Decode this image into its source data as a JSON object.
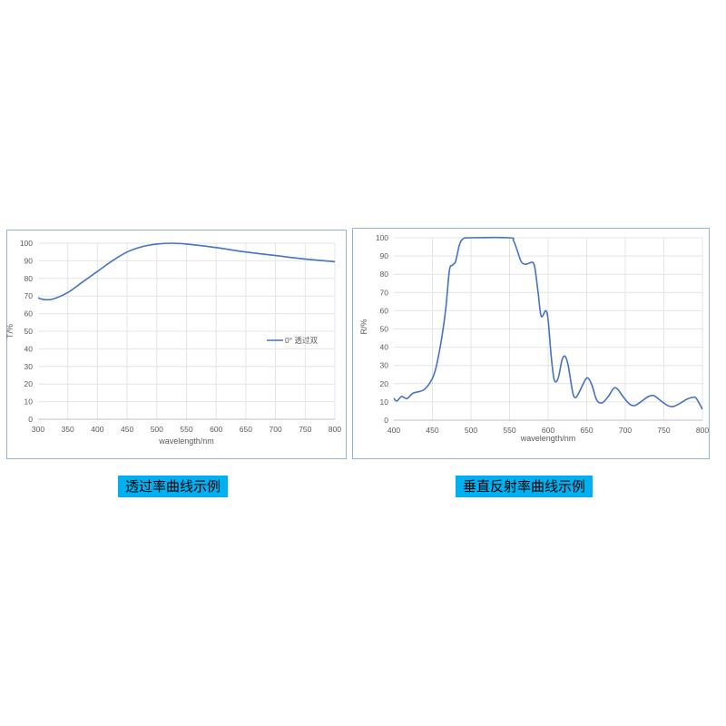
{
  "chart_data": [
    {
      "type": "line",
      "xlabel": "wavelength/nm",
      "ylabel": "T/%",
      "xlim": [
        300,
        800
      ],
      "ylim": [
        0,
        100
      ],
      "xticks": [
        300,
        350,
        400,
        450,
        500,
        550,
        600,
        650,
        700,
        750,
        800
      ],
      "yticks": [
        0,
        10,
        20,
        30,
        40,
        50,
        60,
        70,
        80,
        90,
        100
      ],
      "grid": true,
      "legend_position": "right",
      "series": [
        {
          "name": "0° 透过双",
          "color": "#4472c4",
          "x": [
            300,
            310,
            325,
            350,
            375,
            400,
            425,
            450,
            475,
            500,
            525,
            550,
            600,
            650,
            700,
            750,
            800
          ],
          "y": [
            69,
            68,
            68.3,
            72,
            78,
            84,
            90,
            95,
            98,
            99.5,
            100,
            99.5,
            97.5,
            95,
            93,
            91,
            89.5
          ]
        }
      ]
    },
    {
      "type": "line",
      "xlabel": "wavelength/nm",
      "ylabel": "R/%",
      "xlim": [
        400,
        800
      ],
      "ylim": [
        0,
        100
      ],
      "xticks": [
        400,
        450,
        500,
        550,
        600,
        650,
        700,
        750,
        800
      ],
      "yticks": [
        0,
        10,
        20,
        30,
        40,
        50,
        60,
        70,
        80,
        90,
        100
      ],
      "grid": true,
      "series": [
        {
          "color": "#4472c4",
          "x": [
            400,
            404,
            410,
            417,
            425,
            440,
            452,
            460,
            467,
            472,
            476,
            480,
            485,
            490,
            500,
            550,
            555,
            560,
            565,
            570,
            575,
            580,
            583,
            587,
            591,
            597,
            600,
            604,
            608,
            613,
            618,
            622,
            626,
            632,
            636,
            641,
            648,
            652,
            657,
            663,
            670,
            678,
            685,
            690,
            697,
            705,
            712,
            720,
            730,
            737,
            745,
            755,
            762,
            770,
            780,
            788,
            792,
            800
          ],
          "y": [
            12,
            10.5,
            13,
            11.8,
            14.8,
            17,
            25,
            40,
            60,
            82,
            85,
            87,
            96,
            99.5,
            100,
            100,
            98.5,
            93,
            87,
            85.5,
            86,
            86.5,
            83,
            70,
            57,
            60,
            55,
            35,
            22,
            23,
            33,
            35,
            30,
            15,
            12.5,
            16,
            22,
            23,
            19,
            11,
            9.5,
            13,
            17.5,
            17,
            13,
            9,
            8,
            10,
            13,
            13.5,
            11,
            8,
            7.5,
            9,
            11.5,
            12.5,
            12,
            6
          ]
        }
      ]
    }
  ],
  "captions": {
    "left": "透过率曲线示例",
    "right": "垂直反射率曲线示例"
  }
}
